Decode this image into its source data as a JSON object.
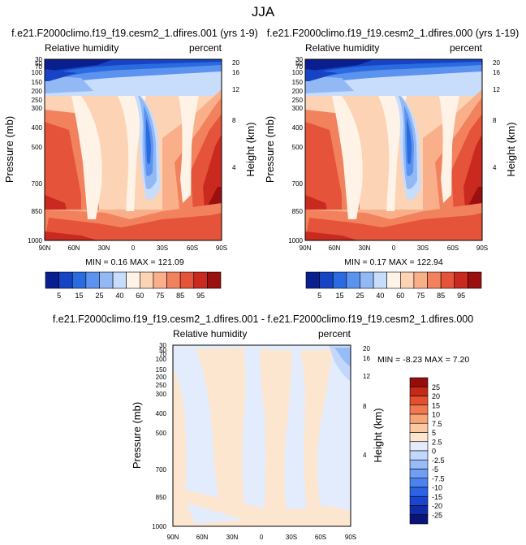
{
  "figure": {
    "main_title": "JJA"
  },
  "palettes": {
    "rh": [
      "#0a1f8f",
      "#1644c4",
      "#2b6be0",
      "#5b93ee",
      "#93b9f5",
      "#c8dcfb",
      "#fef3e6",
      "#fcd3b4",
      "#f9b08a",
      "#f2825d",
      "#e4533a",
      "#c9291f",
      "#9a0f0f"
    ],
    "diff": [
      "#0a1378",
      "#0f2ba8",
      "#1846d0",
      "#2c63e6",
      "#4c82ef",
      "#6f9ef4",
      "#98bcf8",
      "#c2d7fb",
      "#e2ecfd",
      "#fde6d0",
      "#fbc8a2",
      "#f7a477",
      "#ef7a52",
      "#e2502f",
      "#c42a17",
      "#950e0b"
    ]
  },
  "chart_data": [
    {
      "type": "heatmap",
      "title": "f.e21.F2000climo.f19_f19.cesm2_1.dfires.001 (yrs 1-9)",
      "left_label": "Relative humidity",
      "right_label": "percent",
      "ylabel": "Pressure (mb)",
      "y2label": "Height (km)",
      "x_ticks": [
        "90N",
        "60N",
        "30N",
        "0",
        "30S",
        "60S",
        "90S"
      ],
      "y_ticks": [
        "30",
        "50",
        "70",
        "100",
        "150",
        "200",
        "250",
        "300",
        "400",
        "500",
        "700",
        "850",
        "1000"
      ],
      "y2_ticks": [
        "20",
        "16",
        "12",
        "8",
        "4"
      ],
      "stats": "MIN =  0.16  MAX = 121.09",
      "colorbar_labels": [
        "5",
        "15",
        "25",
        "40",
        "60",
        "75",
        "85",
        "95"
      ]
    },
    {
      "type": "heatmap",
      "title": "f.e21.F2000climo.f19_f19.cesm2_1.dfires.000 (yrs 1-19)",
      "left_label": "Relative humidity",
      "right_label": "percent",
      "ylabel": "Pressure (mb)",
      "y2label": "Height (km)",
      "x_ticks": [
        "90N",
        "60N",
        "30N",
        "0",
        "30S",
        "60S",
        "90S"
      ],
      "y_ticks": [
        "30",
        "50",
        "70",
        "100",
        "150",
        "200",
        "250",
        "300",
        "400",
        "500",
        "700",
        "850",
        "1000"
      ],
      "y2_ticks": [
        "20",
        "16",
        "12",
        "8",
        "4"
      ],
      "stats": "MIN =  0.17  MAX = 122.94",
      "colorbar_labels": [
        "5",
        "15",
        "25",
        "40",
        "60",
        "75",
        "85",
        "95"
      ]
    },
    {
      "type": "heatmap",
      "title": "f.e21.F2000climo.f19_f19.cesm2_1.dfires.001 - f.e21.F2000climo.f19_f19.cesm2_1.dfires.000",
      "left_label": "Relative humidity",
      "right_label": "percent",
      "ylabel": "Pressure (mb)",
      "y2label": "Height (km)",
      "x_ticks": [
        "90N",
        "60N",
        "30N",
        "0",
        "30S",
        "60S",
        "90S"
      ],
      "y_ticks": [
        "30",
        "50",
        "70",
        "100",
        "150",
        "200",
        "250",
        "300",
        "400",
        "500",
        "700",
        "850",
        "1000"
      ],
      "y2_ticks": [
        "20",
        "16",
        "12",
        "8",
        "4"
      ],
      "stats": "MIN = -8.23  MAX =  7.20",
      "colorbar_labels": [
        "25",
        "20",
        "15",
        "10",
        "7.5",
        "5",
        "2.5",
        "0",
        "-2.5",
        "-5",
        "-7.5",
        "-10",
        "-15",
        "-20",
        "-25"
      ]
    }
  ]
}
